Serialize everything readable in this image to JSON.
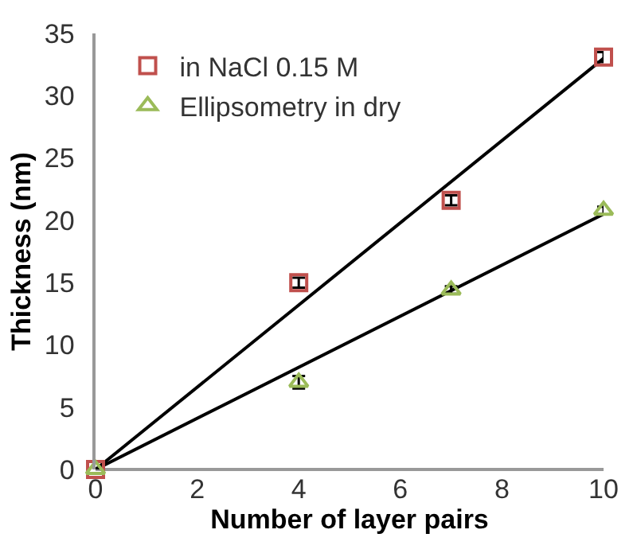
{
  "chart_data": {
    "type": "scatter",
    "xlabel": "Number of layer pairs",
    "ylabel": "Thickness (nm)",
    "xlim": [
      0,
      10
    ],
    "ylim": [
      0,
      35
    ],
    "xticks": [
      0,
      2,
      4,
      6,
      8,
      10
    ],
    "yticks": [
      0,
      5,
      10,
      15,
      20,
      25,
      30,
      35
    ],
    "legend": "top left",
    "series": [
      {
        "name": "in NaCl 0.15 M",
        "color": "#c0504d",
        "marker": "square",
        "x": [
          0,
          4,
          7,
          10
        ],
        "values": [
          0,
          15,
          21.6,
          33.1
        ],
        "errors": [
          null,
          0.4,
          0.4,
          0.4
        ]
      },
      {
        "name": "Ellipsometry in dry",
        "color": "#9bbb59",
        "marker": "triangle",
        "x": [
          0,
          4,
          7,
          10
        ],
        "values": [
          0,
          7,
          14.4,
          20.8
        ],
        "errors": [
          null,
          0.5,
          0.3,
          0.3
        ]
      },
      {
        "type": "line",
        "color": "#000000",
        "line_style": "solid",
        "x": [
          0,
          10
        ],
        "values": [
          0,
          33
        ]
      },
      {
        "type": "line",
        "color": "#000000",
        "line_style": "solid",
        "x": [
          0,
          10
        ],
        "values": [
          0,
          20.5
        ]
      }
    ]
  }
}
